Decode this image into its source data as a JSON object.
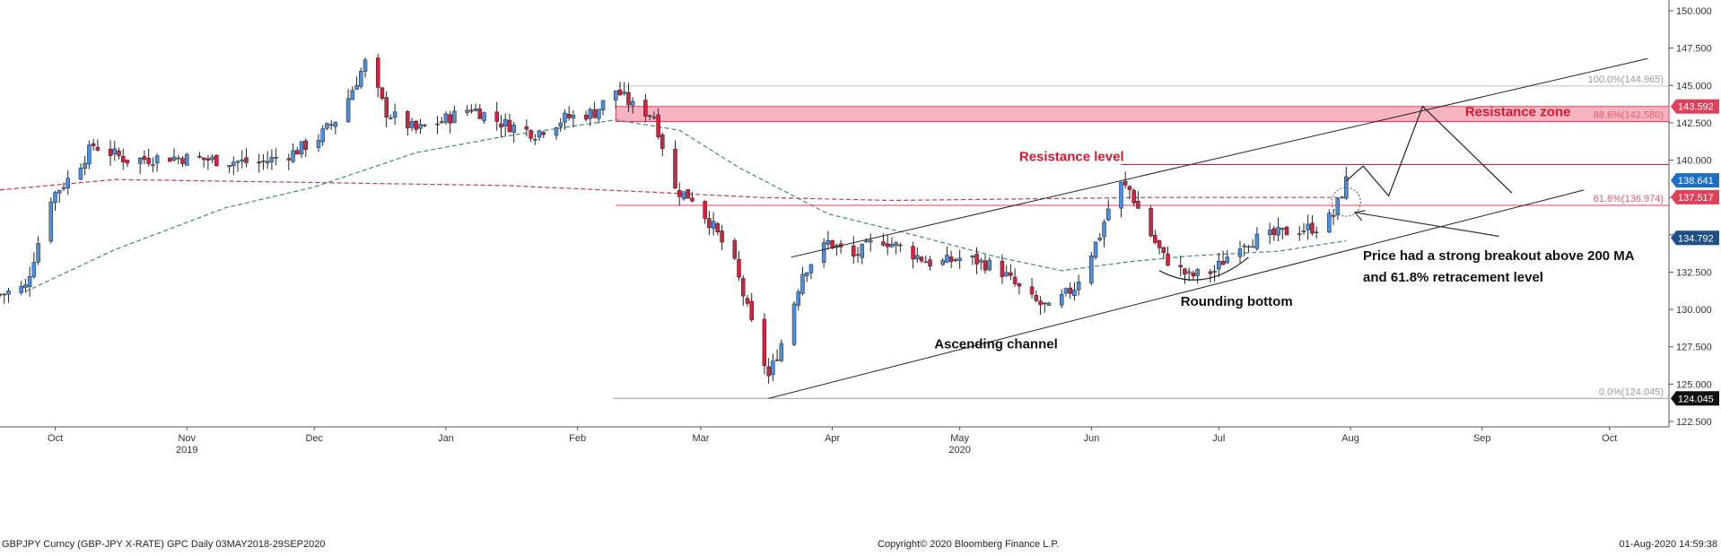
{
  "chart_data": {
    "type": "candlestick",
    "y_ticks": [
      "150.000",
      "147.500",
      "145.000",
      "142.500",
      "140.000",
      "137.500",
      "135.000",
      "132.500",
      "130.000",
      "127.500",
      "125.000",
      "122.500"
    ],
    "y_tick_values": [
      150,
      147.5,
      145,
      142.5,
      140,
      137.5,
      135,
      132.5,
      130,
      127.5,
      125,
      122.5
    ],
    "ylim": [
      122.5,
      150
    ],
    "month_labels": [
      {
        "label": "Oct",
        "date": "2019-10-01"
      },
      {
        "label": "Nov",
        "date": "2019-11-01"
      },
      {
        "label": "Dec",
        "date": "2019-12-01"
      },
      {
        "label": "Jan",
        "date": "2020-01-01"
      },
      {
        "label": "Feb",
        "date": "2020-02-01"
      },
      {
        "label": "Mar",
        "date": "2020-03-01"
      },
      {
        "label": "Apr",
        "date": "2020-04-01"
      },
      {
        "label": "May",
        "date": "2020-05-01"
      },
      {
        "label": "Jun",
        "date": "2020-06-01"
      },
      {
        "label": "Jul",
        "date": "2020-07-01"
      },
      {
        "label": "Aug",
        "date": "2020-08-01"
      },
      {
        "label": "Sep",
        "date": "2020-09-01"
      },
      {
        "label": "Oct",
        "date": "2020-10-01"
      }
    ],
    "year_labels": [
      {
        "label": "2019",
        "date": "2019-11-01"
      },
      {
        "label": "2020",
        "date": "2020-05-01"
      }
    ],
    "xlim": [
      "2019-09-18",
      "2020-10-15"
    ],
    "price_path": [
      [
        "2019-09-18",
        131.0
      ],
      [
        "2019-09-24",
        131.5
      ],
      [
        "2019-09-30",
        137.5
      ],
      [
        "2019-10-05",
        139.0
      ],
      [
        "2019-10-10",
        141.0
      ],
      [
        "2019-10-18",
        140.0
      ],
      [
        "2019-10-28",
        140.2
      ],
      [
        "2019-11-08",
        140.0
      ],
      [
        "2019-11-18",
        139.8
      ],
      [
        "2019-11-26",
        140.5
      ],
      [
        "2019-12-02",
        141.5
      ],
      [
        "2019-12-07",
        143.0
      ],
      [
        "2019-12-13",
        146.5
      ],
      [
        "2019-12-18",
        143.2
      ],
      [
        "2019-12-25",
        142.0
      ],
      [
        "2019-12-30",
        142.5
      ],
      [
        "2020-01-07",
        143.5
      ],
      [
        "2020-01-14",
        142.5
      ],
      [
        "2020-01-22",
        141.8
      ],
      [
        "2020-01-29",
        142.8
      ],
      [
        "2020-02-05",
        143.2
      ],
      [
        "2020-02-10",
        144.7
      ],
      [
        "2020-02-14",
        143.6
      ],
      [
        "2020-02-19",
        143.0
      ],
      [
        "2020-02-24",
        138.0
      ],
      [
        "2020-02-28",
        137.5
      ],
      [
        "2020-03-04",
        135.5
      ],
      [
        "2020-03-09",
        133.0
      ],
      [
        "2020-03-13",
        129.0
      ],
      [
        "2020-03-17",
        125.5
      ],
      [
        "2020-03-21",
        128.5
      ],
      [
        "2020-03-25",
        132.5
      ],
      [
        "2020-03-31",
        134.5
      ],
      [
        "2020-04-06",
        133.5
      ],
      [
        "2020-04-12",
        134.8
      ],
      [
        "2020-04-18",
        134.0
      ],
      [
        "2020-04-25",
        133.0
      ],
      [
        "2020-05-02",
        133.5
      ],
      [
        "2020-05-10",
        132.8
      ],
      [
        "2020-05-17",
        130.8
      ],
      [
        "2020-05-22",
        130.0
      ],
      [
        "2020-05-28",
        131.5
      ],
      [
        "2020-06-03",
        135.0
      ],
      [
        "2020-06-07",
        138.5
      ],
      [
        "2020-06-10",
        138.0
      ],
      [
        "2020-06-14",
        135.5
      ],
      [
        "2020-06-18",
        133.5
      ],
      [
        "2020-06-24",
        132.2
      ],
      [
        "2020-06-30",
        132.6
      ],
      [
        "2020-07-06",
        134.5
      ],
      [
        "2020-07-12",
        134.8
      ],
      [
        "2020-07-18",
        135.3
      ],
      [
        "2020-07-24",
        135.5
      ],
      [
        "2020-07-28",
        136.3
      ],
      [
        "2020-07-31",
        138.6
      ]
    ],
    "ma_200": [
      [
        "2019-09-18",
        138.0
      ],
      [
        "2019-10-15",
        138.7
      ],
      [
        "2019-12-01",
        138.5
      ],
      [
        "2020-01-15",
        138.3
      ],
      [
        "2020-02-15",
        137.9
      ],
      [
        "2020-03-15",
        137.5
      ],
      [
        "2020-04-15",
        137.3
      ],
      [
        "2020-05-15",
        137.4
      ],
      [
        "2020-06-15",
        137.5
      ],
      [
        "2020-07-31",
        137.5
      ]
    ],
    "ma_50": [
      [
        "2019-09-24",
        131.2
      ],
      [
        "2019-10-15",
        134.0
      ],
      [
        "2019-11-10",
        136.8
      ],
      [
        "2019-12-01",
        138.2
      ],
      [
        "2019-12-25",
        140.5
      ],
      [
        "2020-01-15",
        141.6
      ],
      [
        "2020-02-10",
        142.7
      ],
      [
        "2020-02-25",
        142.0
      ],
      [
        "2020-03-10",
        139.5
      ],
      [
        "2020-03-31",
        136.4
      ],
      [
        "2020-04-20",
        135.0
      ],
      [
        "2020-05-10",
        133.5
      ],
      [
        "2020-05-25",
        132.6
      ],
      [
        "2020-06-10",
        133.2
      ],
      [
        "2020-06-25",
        133.6
      ],
      [
        "2020-07-15",
        133.9
      ],
      [
        "2020-07-31",
        134.6
      ]
    ],
    "fib_levels": [
      {
        "value": 144.965,
        "label": "100.0%(144.965)",
        "color": "#bfbfbf",
        "text_color": "#9a9a9a"
      },
      {
        "value": 142.58,
        "label": "88.6%(142.580)",
        "color": "#e0415a",
        "text_color": "#e05a72"
      },
      {
        "value": 136.974,
        "label": "61.8%(136.974)",
        "color": "#e0415a",
        "text_color": "#e05a72"
      },
      {
        "value": 124.045,
        "label": "0.0%(124.045)",
        "color": "#9a9a9a",
        "text_color": "#9a9a9a"
      }
    ],
    "fib_start_date": "2020-02-10",
    "resistance_zone": {
      "low": 142.58,
      "high": 143.592,
      "start": "2020-02-10",
      "label": "Resistance zone"
    },
    "resistance_level": {
      "value": 139.7,
      "start": "2020-06-08",
      "label": "Resistance level"
    },
    "channel": {
      "upper": [
        [
          "2020-03-17",
          133.5
        ],
        [
          "2020-10-10",
          146.8
        ]
      ],
      "lower": [
        [
          "2020-03-17",
          124.045
        ],
        [
          "2020-09-25",
          138.0
        ]
      ],
      "upper_label_start": "2020-03-17",
      "label": "Ascending channel"
    },
    "projection": [
      [
        "2020-07-31",
        138.6
      ],
      [
        "2020-08-04",
        139.6
      ],
      [
        "2020-08-10",
        137.6
      ],
      [
        "2020-08-18",
        143.6
      ],
      [
        "2020-09-08",
        137.8
      ]
    ],
    "price_tags": [
      {
        "value": 143.592,
        "text": "143.592",
        "bg": "#e0415a"
      },
      {
        "value": 138.641,
        "text": "138.641",
        "bg": "#1e6fc4"
      },
      {
        "value": 137.517,
        "text": "137.517",
        "bg": "#e0415a"
      },
      {
        "value": 134.792,
        "text": "134.792",
        "bg": "#1e4f85"
      },
      {
        "value": 124.045,
        "text": "124.045",
        "bg": "#111111"
      }
    ],
    "annotations": {
      "rounding_bottom": "Rounding bottom",
      "breakout_line1": "Price had a strong breakout above 200 MA",
      "breakout_line2": "and 61.8% retracement level"
    },
    "colors": {
      "up": "#4a8fe0",
      "down": "#d4233f",
      "ma200": "#c0394f",
      "ma50": "#3a8a8a",
      "axis": "#555555"
    }
  },
  "footer": {
    "left": "GBPJPY Curncy (GBP-JPY X-RATE) GPC  Daily 03MAY2018-29SEP2020",
    "center": "Copyright© 2020 Bloomberg Finance L.P.",
    "right": "01-Aug-2020 14:59:38"
  }
}
